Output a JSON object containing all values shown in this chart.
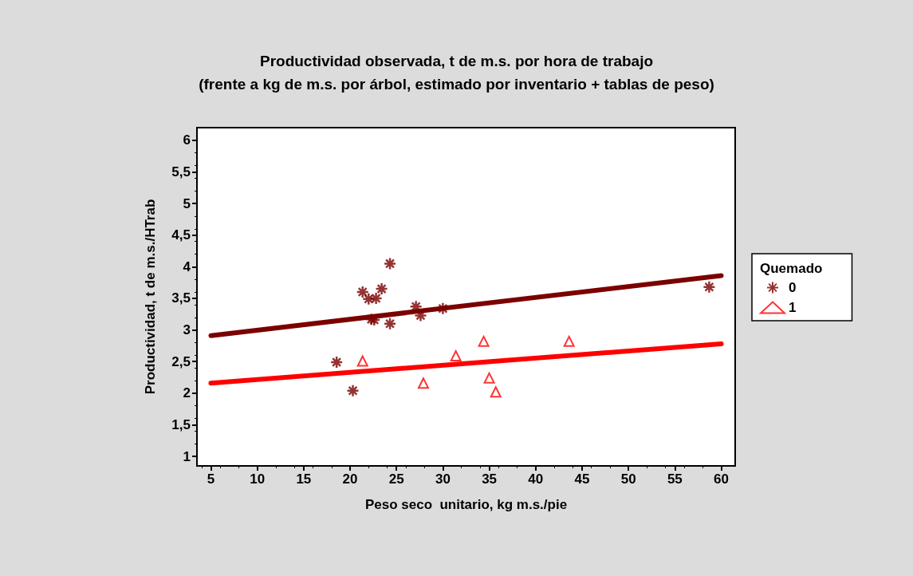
{
  "chart_data": {
    "type": "scatter",
    "title": "Productividad observada, t de m.s. por hora de trabajo",
    "subtitle": "(frente a kg de m.s. por árbol, estimado por inventario + tablas de peso)",
    "xlabel": "Peso seco  unitario, kg m.s./pie",
    "ylabel": "Productividad, t de m.s./HTrab",
    "legend_title": "Quemado",
    "legend": "right",
    "grid": false,
    "xlim": [
      3.5,
      61.5
    ],
    "xticks": [
      5,
      10,
      15,
      20,
      25,
      30,
      35,
      40,
      45,
      50,
      55,
      60
    ],
    "ylim": [
      0.85,
      6.2
    ],
    "yticks": [
      1,
      {
        "value": 1.5,
        "label": "1,5"
      },
      2,
      {
        "value": 2.5,
        "label": "2,5"
      },
      3,
      {
        "value": 3.5,
        "label": "3,5"
      },
      4,
      {
        "value": 4.5,
        "label": "4,5"
      },
      5,
      {
        "value": 5.5,
        "label": "5,5"
      },
      6
    ],
    "series": [
      {
        "name": "0",
        "color": "#7b0000",
        "marker": "cross",
        "x": [
          24.3,
          21.35,
          22.0,
          22.8,
          23.4,
          22.3,
          22.6,
          24.3,
          27.1,
          27.6,
          30.0,
          58.7,
          18.55,
          20.3
        ],
        "values": [
          4.05,
          3.6,
          3.49,
          3.5,
          3.65,
          3.17,
          3.16,
          3.1,
          3.37,
          3.23,
          3.34,
          3.68,
          2.49,
          2.04
        ]
      },
      {
        "name": "1",
        "color": "#ff0000",
        "marker": "triangle",
        "x": [
          21.35,
          27.9,
          31.4,
          34.4,
          35.0,
          35.7,
          43.6
        ],
        "values": [
          2.51,
          2.16,
          2.59,
          2.82,
          2.24,
          2.02,
          2.82
        ]
      },
      {
        "type": "line",
        "color": "#7b0000",
        "marker": "none",
        "x": [
          5,
          60
        ],
        "values": [
          2.91,
          3.86
        ]
      },
      {
        "type": "line",
        "color": "#ff0000",
        "marker": "none",
        "x": [
          5,
          60
        ],
        "values": [
          2.16,
          2.78
        ]
      }
    ]
  }
}
